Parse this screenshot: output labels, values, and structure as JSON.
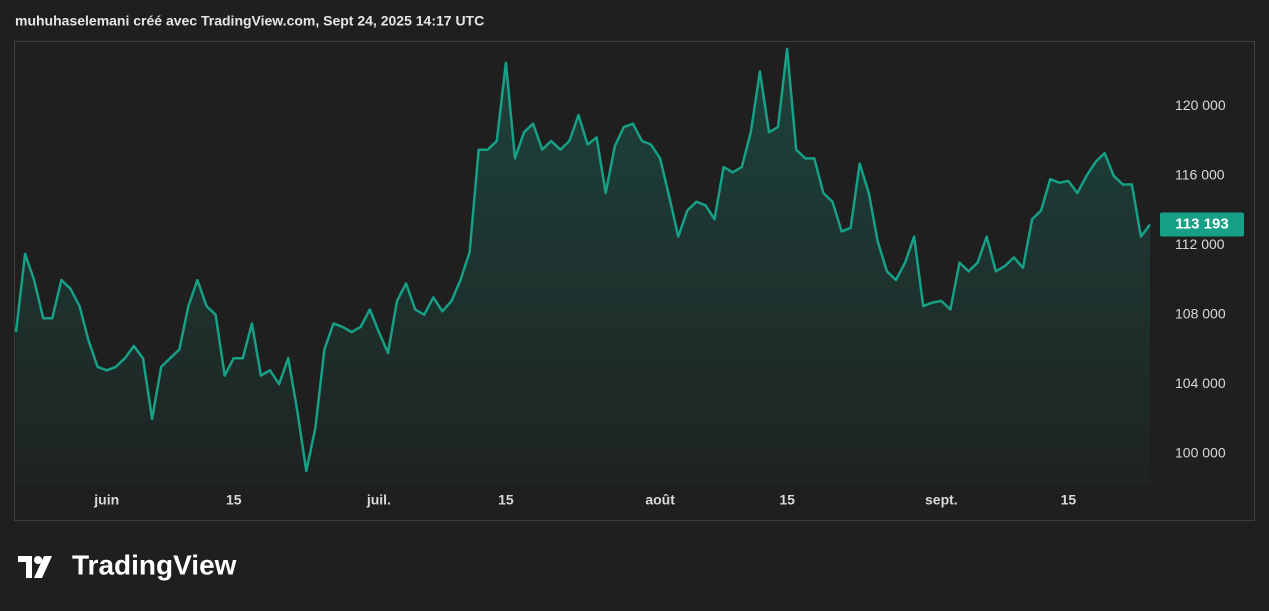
{
  "chart_data": {
    "type": "area",
    "title": "muhuhaselemani créé avec TradingView.com, Sept 24, 2025 14:17 UTC",
    "brand": "TradingView",
    "color": "#16a085",
    "categories": [
      null,
      null,
      null,
      null,
      null,
      null,
      null,
      null,
      null,
      null,
      "juin",
      null,
      null,
      null,
      null,
      null,
      null,
      null,
      null,
      null,
      null,
      null,
      null,
      null,
      "15",
      null,
      null,
      null,
      null,
      null,
      null,
      null,
      null,
      null,
      null,
      null,
      null,
      null,
      null,
      null,
      "juil.",
      null,
      null,
      null,
      null,
      null,
      null,
      null,
      null,
      null,
      null,
      null,
      null,
      null,
      "15",
      null,
      null,
      null,
      null,
      null,
      null,
      null,
      null,
      null,
      null,
      null,
      null,
      null,
      null,
      null,
      null,
      "août",
      null,
      null,
      null,
      null,
      null,
      null,
      null,
      null,
      null,
      null,
      null,
      null,
      null,
      "15",
      null,
      null,
      null,
      null,
      null,
      null,
      null,
      null,
      null,
      null,
      null,
      null,
      null,
      null,
      null,
      null,
      "sept.",
      null,
      null,
      null,
      null,
      null,
      null,
      null,
      null,
      null,
      null,
      null,
      null,
      null,
      "15",
      null,
      null,
      null,
      null,
      null,
      null,
      null,
      null,
      null
    ],
    "values": [
      107000,
      111500,
      110000,
      107800,
      107800,
      110000,
      109500,
      108500,
      106500,
      105000,
      104800,
      105000,
      105500,
      106200,
      105500,
      102000,
      105000,
      105500,
      106000,
      108500,
      110000,
      108500,
      108000,
      104500,
      105500,
      105500,
      107500,
      104500,
      104800,
      104000,
      105500,
      102500,
      99000,
      101500,
      106000,
      107500,
      107300,
      107000,
      107300,
      108300,
      107000,
      105800,
      108800,
      109800,
      108300,
      108000,
      109000,
      108200,
      108800,
      110000,
      111600,
      117500,
      117500,
      118000,
      122500,
      117000,
      118500,
      119000,
      117500,
      118000,
      117500,
      118000,
      119500,
      117800,
      118200,
      115000,
      117700,
      118800,
      119000,
      118000,
      117800,
      117000,
      114800,
      112500,
      114000,
      114500,
      114300,
      113500,
      116500,
      116200,
      116500,
      118500,
      122000,
      118500,
      118800,
      123300,
      117500,
      117000,
      117000,
      115000,
      114500,
      112800,
      113000,
      116700,
      115000,
      112200,
      110500,
      110000,
      111000,
      112500,
      108500,
      108700,
      108800,
      108300,
      111000,
      110500,
      111000,
      112500,
      110500,
      110800,
      111300,
      110700,
      113500,
      114000,
      115800,
      115600,
      115700,
      115000,
      116000,
      116800,
      117300,
      116000,
      115500,
      115500,
      112500,
      113193
    ],
    "last_price": {
      "value": 113193,
      "label": "113 193"
    },
    "ylim": [
      98200,
      123700
    ],
    "yticks": [
      {
        "value": 100000,
        "label": "100 000"
      },
      {
        "value": 104000,
        "label": "104 000"
      },
      {
        "value": 108000,
        "label": "108 000"
      },
      {
        "value": 112000,
        "label": "112 000"
      },
      {
        "value": 116000,
        "label": "116 000"
      },
      {
        "value": 120000,
        "label": "120 000"
      }
    ]
  }
}
